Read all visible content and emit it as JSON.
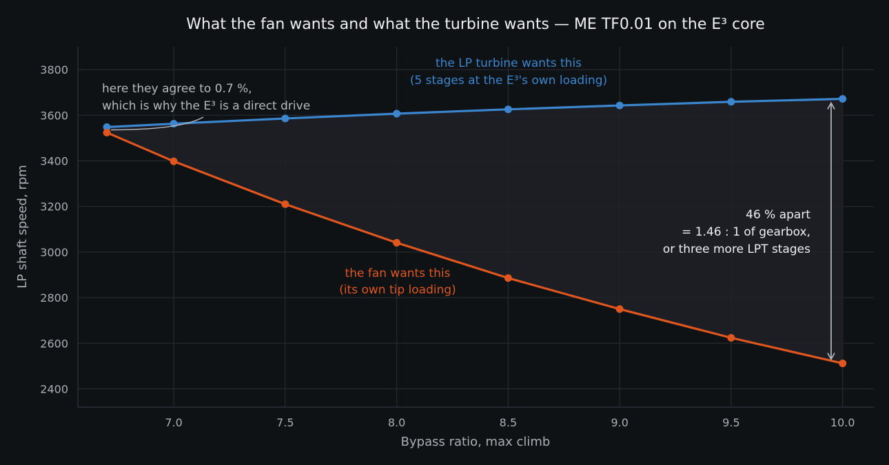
{
  "chart_data": {
    "type": "line",
    "title": "What the fan wants and what the turbine wants — ME TF0.01 on the E³ core",
    "xlabel": "Bypass ratio, max climb",
    "ylabel": "LP shaft speed, rpm",
    "xlim": [
      6.57,
      10.14
    ],
    "ylim": [
      2320,
      3900
    ],
    "xticks": [
      "7.0",
      "7.5",
      "8.0",
      "8.5",
      "9.0",
      "9.5",
      "10.0"
    ],
    "yticks": [
      "2400",
      "2600",
      "2800",
      "3000",
      "3200",
      "3400",
      "3600",
      "3800"
    ],
    "grid": true,
    "legend": "none",
    "x": [
      6.7,
      7.0,
      7.5,
      8.0,
      8.5,
      9.0,
      9.5,
      10.0
    ],
    "series": [
      {
        "name": "",
        "color": "#3b86cf",
        "values": [
          3548,
          3563,
          3586,
          3607,
          3626,
          3643,
          3659,
          3672
        ]
      },
      {
        "name": "",
        "color": "#e0561f",
        "values": [
          3524,
          3398,
          3210,
          3041,
          2886,
          2750,
          2624,
          2512
        ]
      }
    ],
    "fill_between_color": "#1f2126",
    "annotations": {
      "turbine": {
        "lines": [
          "the LP turbine wants this",
          "(5 stages at the E³'s own loading)"
        ],
        "color": "#3b86cf"
      },
      "fan": {
        "lines": [
          "the fan wants this",
          "(its own tip loading)"
        ],
        "color": "#e0561f"
      },
      "agree": {
        "lines": [
          "here they agree to 0.7 %,",
          "which is why the E³ is a direct drive"
        ],
        "color": "#b5babf"
      },
      "gap": {
        "lines": [
          "46 % apart",
          "= 1.46 : 1 of gearbox,",
          "or three more LPT stages"
        ],
        "color": "#eef0f2"
      }
    }
  }
}
